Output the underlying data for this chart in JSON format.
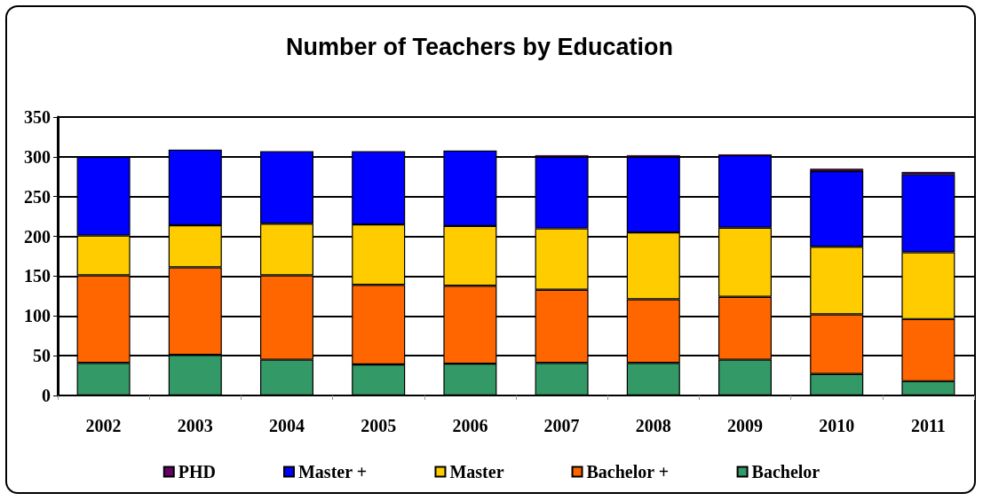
{
  "chart_data": {
    "type": "bar",
    "title": "Number of Teachers by Education",
    "categories": [
      "2002",
      "2003",
      "2004",
      "2005",
      "2006",
      "2007",
      "2008",
      "2009",
      "2010",
      "2011"
    ],
    "stacked": true,
    "series": [
      {
        "name": "Bachelor",
        "color": "#339966",
        "values": [
          41,
          51,
          45,
          39,
          40,
          41,
          41,
          45,
          27,
          18
        ]
      },
      {
        "name": "Bachelor +",
        "color": "#ff6600",
        "values": [
          110,
          110,
          106,
          100,
          98,
          92,
          80,
          79,
          75,
          78
        ]
      },
      {
        "name": "Master",
        "color": "#ffcc00",
        "values": [
          50,
          53,
          65,
          76,
          75,
          77,
          84,
          87,
          85,
          84
        ]
      },
      {
        "name": "Master +",
        "color": "#0000ff",
        "values": [
          99,
          95,
          91,
          92,
          95,
          90,
          95,
          91,
          95,
          98
        ]
      },
      {
        "name": "PHD",
        "color": "#660066",
        "values": [
          0,
          0,
          0,
          0,
          0,
          2,
          2,
          1,
          3,
          3
        ]
      }
    ],
    "ylim": [
      0,
      350
    ],
    "yticks": [
      0,
      50,
      100,
      150,
      200,
      250,
      300,
      350
    ],
    "grid": "y",
    "legend": "bottom"
  }
}
